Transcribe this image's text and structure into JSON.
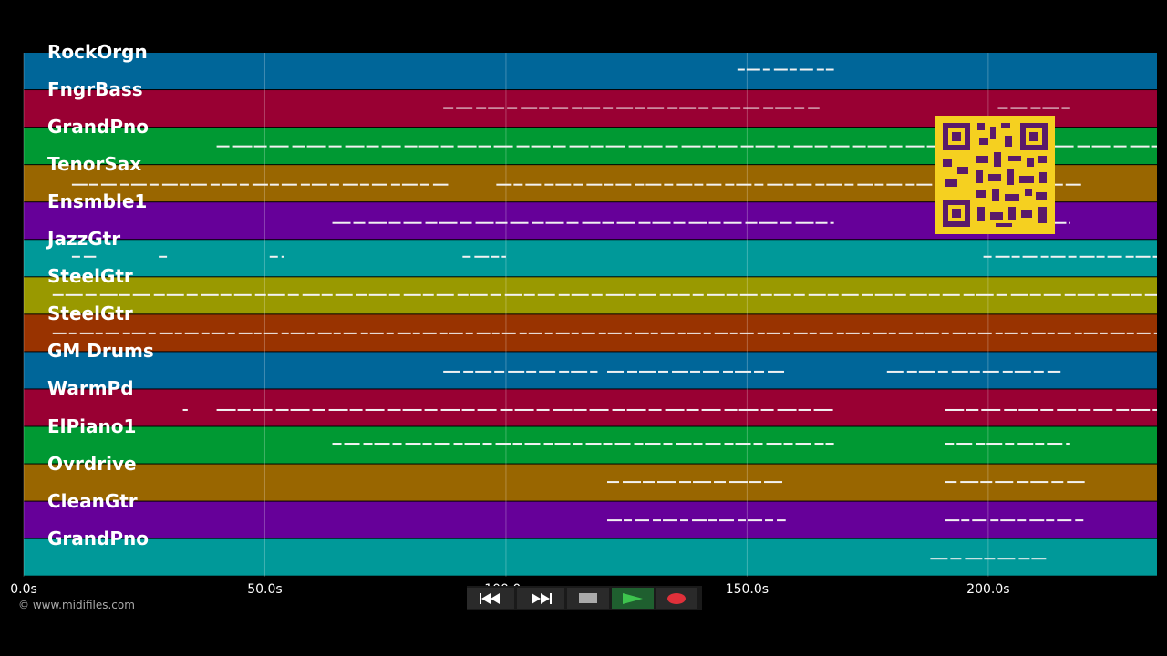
{
  "timeline": {
    "duration_seconds": 235,
    "ticks": [
      {
        "value": 0,
        "label": "0.0s"
      },
      {
        "value": 50,
        "label": "50.0s"
      },
      {
        "value": 100,
        "label": "100.0s"
      },
      {
        "value": 150,
        "label": "150.0s"
      },
      {
        "value": 200,
        "label": "200.0s"
      }
    ]
  },
  "tracks": [
    {
      "name": "RockOrgn",
      "color": "#006699"
    },
    {
      "name": "FngrBass",
      "color": "#990033"
    },
    {
      "name": "GrandPno",
      "color": "#009933"
    },
    {
      "name": "TenorSax",
      "color": "#996600"
    },
    {
      "name": "Ensmble1",
      "color": "#660099"
    },
    {
      "name": "JazzGtr",
      "color": "#009999"
    },
    {
      "name": "SteelGtr",
      "color": "#999900"
    },
    {
      "name": "SteelGtr",
      "color": "#993300"
    },
    {
      "name": "GM Drums",
      "color": "#006699"
    },
    {
      "name": "WarmPd",
      "color": "#990033"
    },
    {
      "name": "ElPiano1",
      "color": "#009933"
    },
    {
      "name": "Ovrdrive",
      "color": "#996600"
    },
    {
      "name": "CleanGtr",
      "color": "#660099"
    },
    {
      "name": "GrandPno",
      "color": "#009999"
    }
  ],
  "note_segments": [
    [
      [
        148,
        168
      ]
    ],
    [
      [
        87,
        165
      ],
      [
        202,
        217
      ]
    ],
    [
      [
        40,
        235
      ]
    ],
    [
      [
        10,
        88
      ],
      [
        98,
        200
      ],
      [
        210,
        220
      ]
    ],
    [
      [
        64,
        168
      ],
      [
        202,
        217
      ]
    ],
    [
      [
        10,
        15
      ],
      [
        28,
        30
      ],
      [
        51,
        54
      ],
      [
        91,
        100
      ],
      [
        199,
        235
      ]
    ],
    [
      [
        6,
        235
      ]
    ],
    [
      [
        6,
        235
      ]
    ],
    [
      [
        87,
        119
      ],
      [
        121,
        158
      ],
      [
        179,
        215
      ]
    ],
    [
      [
        33,
        34
      ],
      [
        40,
        168
      ],
      [
        191,
        235
      ]
    ],
    [
      [
        64,
        168
      ],
      [
        191,
        217
      ]
    ],
    [
      [
        121,
        158
      ],
      [
        191,
        220
      ]
    ],
    [
      [
        121,
        158
      ],
      [
        191,
        220
      ]
    ],
    [
      [
        188,
        212
      ]
    ]
  ],
  "credit": "© www.midifiles.com",
  "transport": {
    "rewind_icon": "rewind-icon",
    "fast_forward_icon": "fast-forward-icon",
    "stop_icon": "stop-icon",
    "play_icon": "play-icon",
    "record_icon": "record-icon"
  },
  "qr_icon": "qr-code-icon"
}
